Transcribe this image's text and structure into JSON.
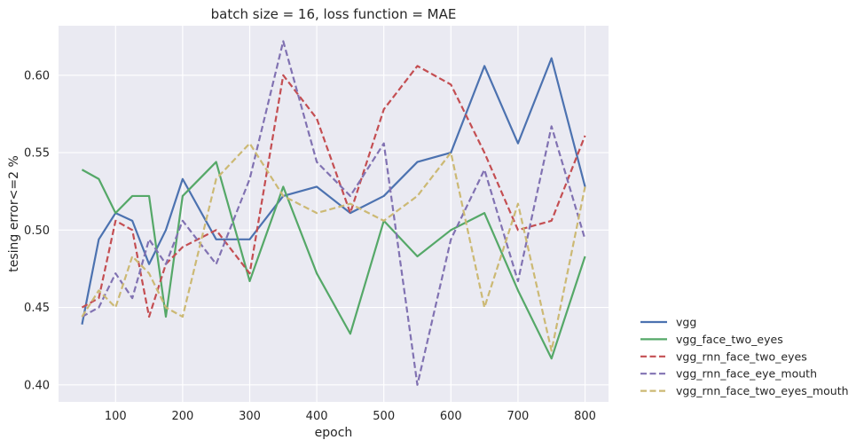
{
  "chart_data": {
    "type": "line",
    "title": "batch size = 16, loss function = MAE",
    "xlabel": "epoch",
    "ylabel": "tesing error<=2 %",
    "xlim": [
      15,
      835
    ],
    "ylim": [
      0.389,
      0.632
    ],
    "xticks": [
      100,
      200,
      300,
      400,
      500,
      600,
      700,
      800
    ],
    "yticks": [
      0.4,
      0.45,
      0.5,
      0.55,
      0.6
    ],
    "xtick_labels": [
      "100",
      "200",
      "300",
      "400",
      "500",
      "600",
      "700",
      "800"
    ],
    "ytick_labels": [
      "0.40",
      "0.45",
      "0.50",
      "0.55",
      "0.60"
    ],
    "grid": true,
    "legend_position": "outside-right-bottom",
    "x": [
      50,
      75,
      100,
      125,
      150,
      175,
      200,
      250,
      300,
      350,
      400,
      450,
      500,
      550,
      600,
      650,
      700,
      750,
      800
    ],
    "series": [
      {
        "name": "vgg",
        "color": "#4c72b0",
        "dash": "solid",
        "values": [
          0.439,
          0.494,
          0.511,
          0.506,
          0.478,
          0.5,
          0.533,
          0.494,
          0.494,
          0.522,
          0.528,
          0.511,
          0.522,
          0.544,
          0.55,
          0.606,
          0.556,
          0.611,
          0.528
        ]
      },
      {
        "name": "vgg_face_two_eyes",
        "color": "#55a868",
        "dash": "solid",
        "values": [
          0.539,
          0.533,
          0.511,
          0.522,
          0.522,
          0.444,
          0.522,
          0.544,
          0.467,
          0.528,
          0.472,
          0.433,
          0.506,
          0.483,
          0.5,
          0.511,
          0.461,
          0.417,
          0.483
        ]
      },
      {
        "name": "vgg_rnn_face_two_eyes",
        "color": "#c44e52",
        "dash": "dashed",
        "values": [
          0.45,
          0.456,
          0.506,
          0.5,
          0.444,
          0.478,
          0.489,
          0.5,
          0.472,
          0.6,
          0.572,
          0.511,
          0.578,
          0.606,
          0.594,
          0.55,
          0.5,
          0.506,
          0.561
        ]
      },
      {
        "name": "vgg_rnn_face_eye_mouth",
        "color": "#8172b2",
        "dash": "dashed",
        "values": [
          0.444,
          0.45,
          0.472,
          0.456,
          0.494,
          0.478,
          0.506,
          0.478,
          0.533,
          0.622,
          0.544,
          0.522,
          0.556,
          0.4,
          0.494,
          0.539,
          0.467,
          0.567,
          0.494
        ]
      },
      {
        "name": "vgg_rnn_face_two_eyes_mouth",
        "color": "#ccb974",
        "dash": "dashed",
        "values": [
          0.444,
          0.461,
          0.45,
          0.483,
          0.472,
          0.45,
          0.444,
          0.533,
          0.556,
          0.522,
          0.511,
          0.517,
          0.506,
          0.522,
          0.55,
          0.45,
          0.517,
          0.422,
          0.528
        ]
      }
    ]
  }
}
